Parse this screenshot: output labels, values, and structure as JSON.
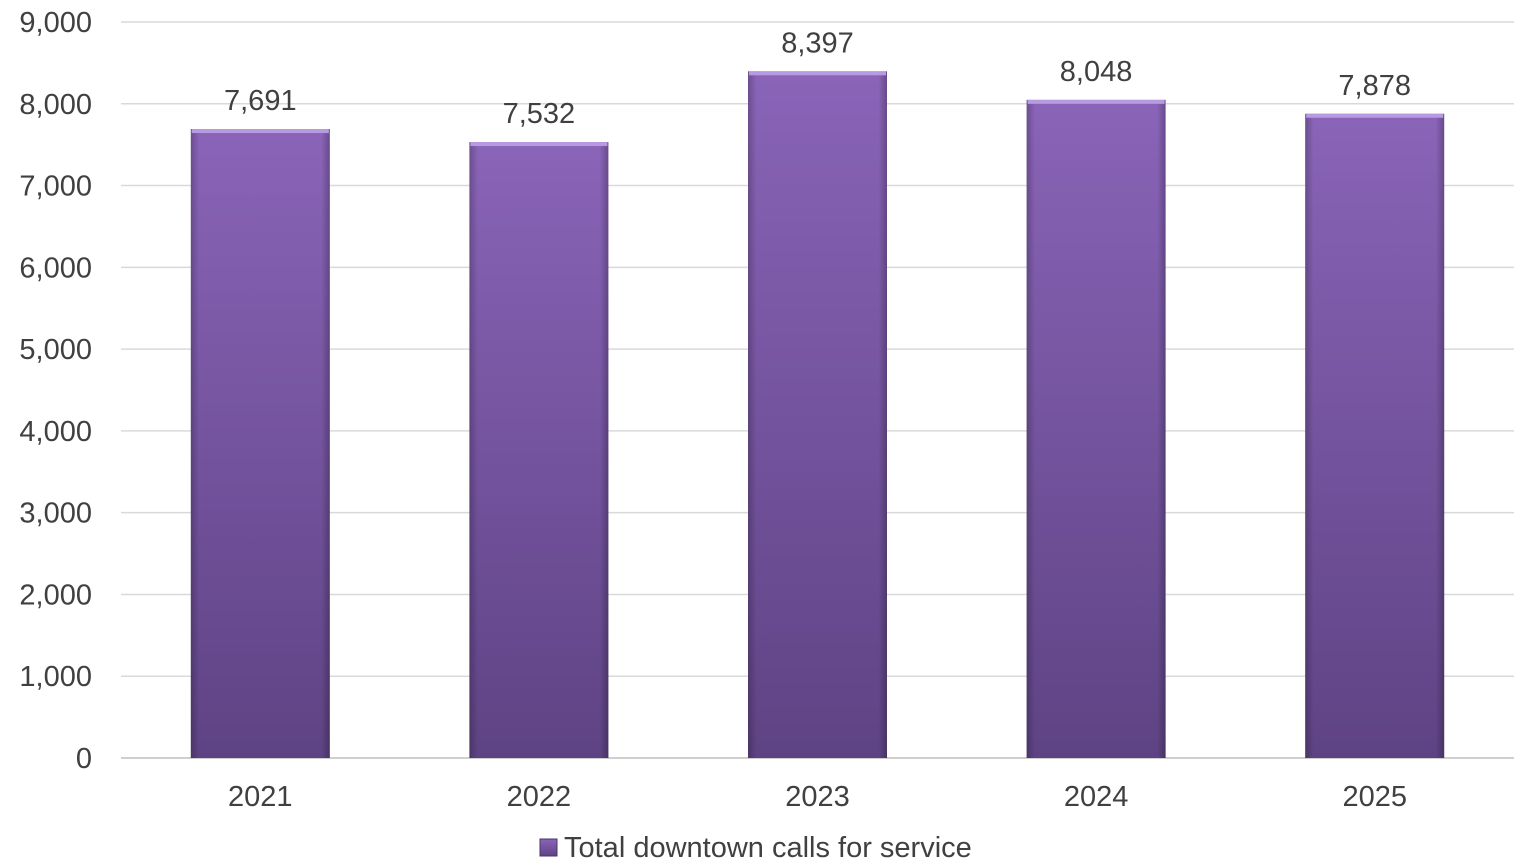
{
  "chart_data": {
    "type": "bar",
    "categories": [
      "2021",
      "2022",
      "2023",
      "2024",
      "2025"
    ],
    "series": [
      {
        "name": "Total downtown calls for service",
        "values": [
          7691,
          7532,
          8397,
          8048,
          7878
        ],
        "data_labels": [
          "7,691",
          "7,532",
          "8,397",
          "8,048",
          "7,878"
        ]
      }
    ],
    "y_ticks": [
      "0",
      "1,000",
      "2,000",
      "3,000",
      "4,000",
      "5,000",
      "6,000",
      "7,000",
      "8,000",
      "9,000"
    ],
    "ylim": [
      0,
      9000
    ],
    "grid": true,
    "legend": "bottom-center",
    "colors": {
      "bar_top": "#8a64b8",
      "bar_bottom": "#5e4384",
      "bar_cap": "#b89ae0"
    }
  }
}
